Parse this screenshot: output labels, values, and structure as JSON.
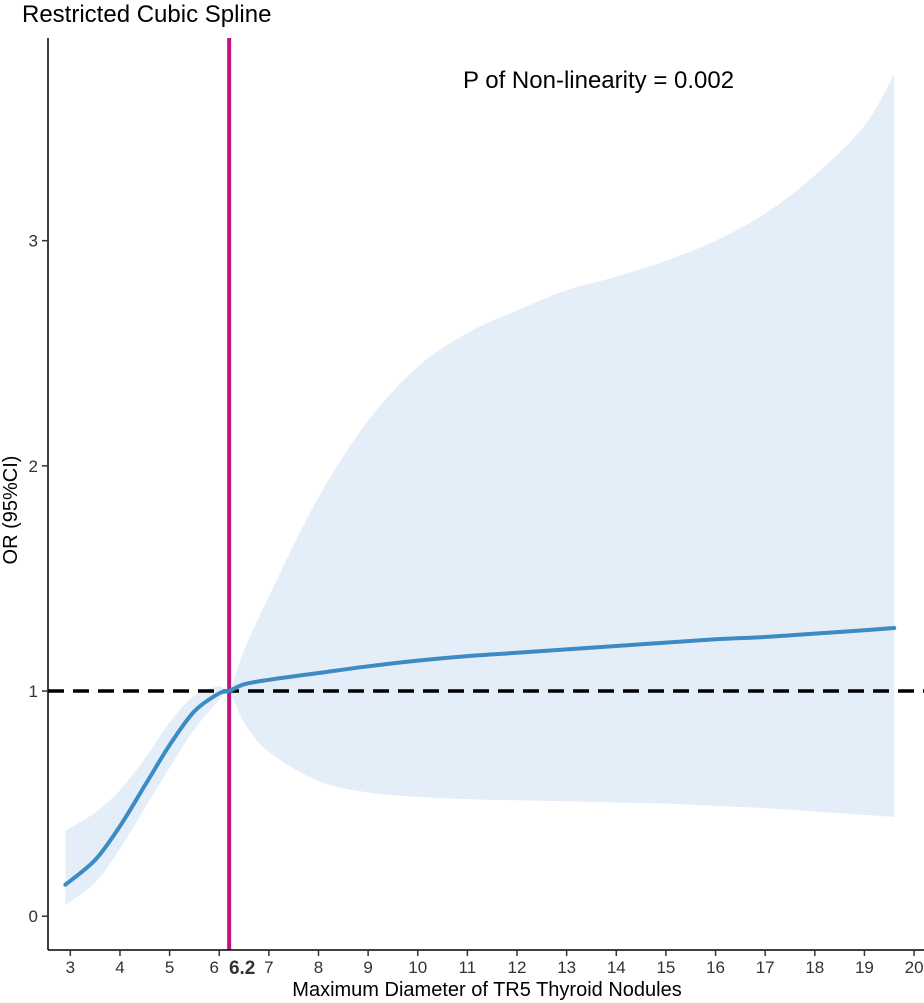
{
  "chart_data": {
    "type": "line",
    "title": "Restricted Cubic Spline",
    "xlabel": "Maximum Diameter of TR5 Thyroid Nodules",
    "ylabel": "OR (95%CI)",
    "annotation": "P of Non-linearity = 0.002",
    "xlim": [
      2.55,
      20.2
    ],
    "ylim": [
      -0.15,
      3.9
    ],
    "x_ticks": [
      3,
      4,
      5,
      6,
      7,
      8,
      9,
      10,
      11,
      12,
      13,
      14,
      15,
      16,
      17,
      18,
      19,
      20
    ],
    "x_tick_labels": [
      "3",
      "4",
      "5",
      "6",
      "7",
      "8",
      "9",
      "10",
      "11",
      "12",
      "13",
      "14",
      "15",
      "16",
      "17",
      "18",
      "19",
      "20"
    ],
    "y_ticks": [
      0,
      1,
      2,
      3
    ],
    "y_tick_labels": [
      "0",
      "1",
      "2",
      "3"
    ],
    "reference_line_y": 1,
    "knot_x": 6.2,
    "knot_label": "6.2",
    "grid": false,
    "colors": {
      "curve": "#3d8bc4",
      "band": "#e3eef8",
      "vertical_line": "#c0137e",
      "reference_line": "#000000"
    },
    "series": [
      {
        "x": [
          2.9,
          3.5,
          4.0,
          4.5,
          5.0,
          5.5,
          6.0,
          6.2,
          6.5,
          7.0,
          8.0,
          9.0,
          10.0,
          11.0,
          12.0,
          13.0,
          14.0,
          15.0,
          16.0,
          17.0,
          18.0,
          19.0,
          19.6
        ],
        "values": [
          0.14,
          0.25,
          0.4,
          0.58,
          0.76,
          0.91,
          0.99,
          1.0,
          1.03,
          1.05,
          1.08,
          1.11,
          1.135,
          1.155,
          1.17,
          1.185,
          1.2,
          1.215,
          1.23,
          1.24,
          1.255,
          1.27,
          1.28
        ],
        "lower": [
          0.05,
          0.15,
          0.3,
          0.48,
          0.66,
          0.83,
          0.96,
          1.0,
          0.86,
          0.73,
          0.6,
          0.55,
          0.53,
          0.52,
          0.515,
          0.51,
          0.505,
          0.5,
          0.49,
          0.48,
          0.465,
          0.45,
          0.44
        ],
        "upper": [
          0.38,
          0.46,
          0.56,
          0.7,
          0.86,
          0.98,
          1.02,
          1.0,
          1.18,
          1.42,
          1.86,
          2.2,
          2.44,
          2.59,
          2.69,
          2.78,
          2.84,
          2.91,
          3.0,
          3.12,
          3.29,
          3.51,
          3.74
        ]
      }
    ]
  }
}
